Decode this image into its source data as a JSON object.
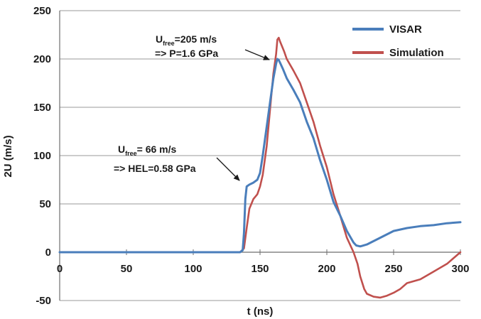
{
  "chart_data": {
    "type": "line",
    "xlabel": "t (ns)",
    "ylabel": "2U (m/s)",
    "xlim": [
      0,
      300
    ],
    "ylim": [
      -50,
      250
    ],
    "xticks": [
      "0",
      "50",
      "100",
      "150",
      "200",
      "250",
      "300"
    ],
    "yticks": [
      "-50",
      "0",
      "50",
      "100",
      "150",
      "200",
      "250"
    ],
    "grid": "horizontal",
    "legend": "top-right",
    "colors": {
      "VISAR": "#4a7ebb",
      "Simulation": "#c0504d"
    },
    "series": [
      {
        "name": "VISAR",
        "x": [
          0,
          20,
          40,
          60,
          80,
          100,
          120,
          130,
          135,
          137,
          138,
          139,
          140,
          142,
          145,
          148,
          150,
          152,
          155,
          158,
          160,
          162,
          163,
          164,
          165,
          167,
          170,
          175,
          180,
          185,
          190,
          195,
          200,
          205,
          210,
          215,
          220,
          222,
          225,
          230,
          240,
          250,
          260,
          270,
          280,
          290,
          300
        ],
        "y": [
          0,
          0,
          0,
          0,
          0,
          0,
          0,
          0,
          0,
          2,
          20,
          55,
          68,
          70,
          72,
          75,
          82,
          100,
          130,
          160,
          180,
          195,
          200,
          199,
          196,
          190,
          180,
          168,
          155,
          135,
          118,
          95,
          75,
          52,
          38,
          22,
          10,
          7,
          6,
          8,
          15,
          22,
          25,
          27,
          28,
          30,
          31
        ]
      },
      {
        "name": "Simulation",
        "x": [
          15,
          40,
          60,
          80,
          100,
          120,
          135,
          138,
          140,
          142,
          145,
          148,
          150,
          152,
          155,
          158,
          160,
          162,
          163,
          164,
          165,
          168,
          170,
          175,
          180,
          185,
          190,
          195,
          200,
          205,
          210,
          215,
          220,
          223,
          225,
          228,
          230,
          235,
          240,
          245,
          250,
          255,
          260,
          270,
          280,
          290,
          300
        ],
        "y": [
          0,
          0,
          0,
          0,
          0,
          0,
          0,
          4,
          25,
          45,
          55,
          60,
          68,
          80,
          110,
          155,
          185,
          205,
          220,
          222,
          218,
          208,
          200,
          188,
          175,
          155,
          135,
          110,
          88,
          60,
          38,
          15,
          0,
          -12,
          -25,
          -38,
          -43,
          -46,
          -47,
          -45,
          -42,
          -38,
          -32,
          -28,
          -20,
          -12,
          0
        ]
      }
    ],
    "annotations": [
      {
        "line1_prefix": "U",
        "line1_sub": "free",
        "line1_suffix": "=205 m/s",
        "line2": "=> P=1.6 GPa",
        "x": 163,
        "y": 200
      },
      {
        "line1_prefix": "U",
        "line1_sub": "free",
        "line1_suffix": "= 66 m/s",
        "line2": "=> HEL=0.58 GPa",
        "x": 138,
        "y": 68
      }
    ]
  }
}
